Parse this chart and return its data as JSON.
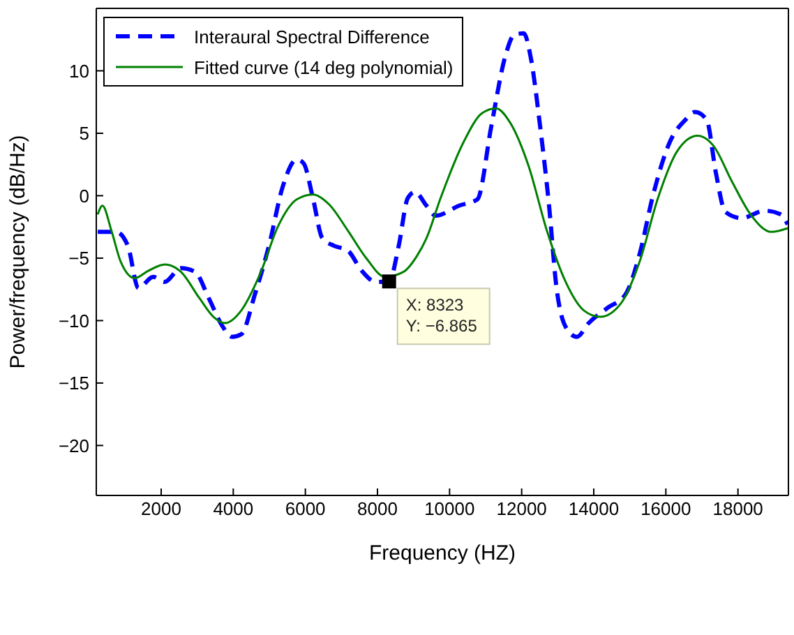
{
  "chart_data": {
    "type": "line",
    "xlabel": "Frequency (HZ)",
    "ylabel": "Power/frequency (dB/Hz)",
    "xlim": [
      200,
      19400
    ],
    "xticks": [
      2000,
      4000,
      6000,
      8000,
      10000,
      12000,
      14000,
      16000,
      18000
    ],
    "ylim": [
      -24,
      15
    ],
    "yticks": [
      10,
      5,
      0,
      {
        "value": -5,
        "label": "−5"
      },
      {
        "value": -10,
        "label": "−10"
      },
      {
        "value": -15,
        "label": "−15"
      },
      {
        "value": -20,
        "label": "−20"
      }
    ],
    "legend": "top left",
    "marker": "none",
    "series": [
      {
        "name": "Interaural Spectral Difference",
        "color": "#0000ff",
        "line_style": "dashed",
        "x": [
          240,
          750,
          1075,
          1370,
          1780,
          2090,
          2550,
          2940,
          3320,
          3710,
          3960,
          4220,
          4600,
          4990,
          5380,
          5760,
          5950,
          6210,
          6470,
          6790,
          7180,
          7560,
          7950,
          8323,
          8590,
          8840,
          9040,
          9360,
          9620,
          10260,
          10770,
          11160,
          11540,
          11800,
          12060,
          12250,
          12510,
          12760,
          12960,
          13220,
          13530,
          13860,
          14370,
          14880,
          15270,
          15650,
          16110,
          16550,
          16810,
          17130,
          17390,
          17650,
          18100,
          18740,
          19190,
          19380
        ],
        "values": [
          -2.9,
          -2.9,
          -4.0,
          -7.4,
          -6.5,
          -6.9,
          -5.8,
          -6.1,
          -8.2,
          -10.5,
          -11.3,
          -11.1,
          -7.9,
          -4.0,
          0.8,
          2.9,
          2.6,
          -0.2,
          -3.4,
          -4.0,
          -4.4,
          -6.0,
          -6.9,
          -6.865,
          -4.0,
          -0.2,
          0.3,
          -0.8,
          -1.6,
          -0.8,
          -0.3,
          5.6,
          11.1,
          12.9,
          13.0,
          11.1,
          5.6,
          -0.8,
          -7.2,
          -10.5,
          -11.3,
          -10.2,
          -9.0,
          -7.9,
          -4.7,
          0.1,
          4.3,
          6.1,
          6.7,
          6.1,
          1.8,
          -1.3,
          -1.8,
          -1.2,
          -1.5,
          -2.3
        ]
      },
      {
        "name": "Fitted curve (14 deg polynomial)",
        "color": "#008000",
        "line_style": "solid",
        "x": [
          240,
          370,
          620,
          880,
          1270,
          1650,
          2100,
          2550,
          3060,
          3450,
          3770,
          4220,
          4740,
          5250,
          5760,
          6210,
          6660,
          7180,
          7690,
          8210,
          8720,
          9100,
          9360,
          9750,
          10390,
          10900,
          11290,
          11670,
          12190,
          12700,
          13220,
          13730,
          14180,
          14760,
          15270,
          15780,
          16300,
          16880,
          17320,
          17840,
          18350,
          18930,
          19380
        ],
        "values": [
          -1.5,
          -0.8,
          -2.8,
          -5.3,
          -6.6,
          -6.0,
          -5.5,
          -6.1,
          -8.2,
          -9.7,
          -10.2,
          -9.2,
          -6.3,
          -2.4,
          -0.3,
          0.1,
          -0.7,
          -2.8,
          -5.0,
          -6.5,
          -6.1,
          -4.8,
          -3.4,
          -0.2,
          4.3,
          6.6,
          7.0,
          5.9,
          2.4,
          -2.8,
          -6.9,
          -9.2,
          -9.7,
          -8.6,
          -5.3,
          -0.2,
          3.5,
          4.8,
          4.0,
          1.1,
          -1.5,
          -2.9,
          -2.6
        ]
      }
    ],
    "annotations": [
      {
        "text": "X: 8323\nY: −6.865",
        "x": 8323,
        "y": -6.865
      }
    ]
  }
}
